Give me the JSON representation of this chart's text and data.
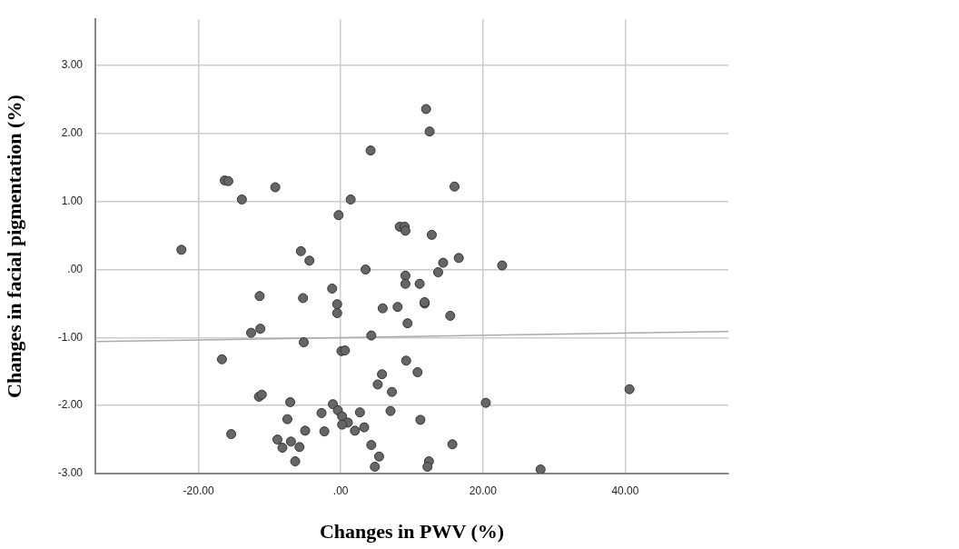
{
  "chart_data": {
    "type": "scatter",
    "xlabel": "Changes in PWV (%)",
    "ylabel": "Changes in facial pigmentation (%)",
    "xlim": [
      -34.5,
      54.5
    ],
    "ylim": [
      -3,
      3.68
    ],
    "xticks": [
      {
        "value": -20,
        "label": "-20.00"
      },
      {
        "value": 0,
        "label": ".00"
      },
      {
        "value": 20,
        "label": "20.00"
      },
      {
        "value": 40,
        "label": "40.00"
      }
    ],
    "yticks": [
      {
        "value": -3,
        "label": "-3.00"
      },
      {
        "value": -2,
        "label": "-2.00"
      },
      {
        "value": -1,
        "label": "-1.00"
      },
      {
        "value": 0,
        "label": ".00"
      },
      {
        "value": 1,
        "label": "1.00"
      },
      {
        "value": 2,
        "label": "2.00"
      },
      {
        "value": 3,
        "label": "3.00"
      }
    ],
    "grid": true,
    "legend": false,
    "marker": "circle",
    "series": [
      {
        "color": "#666666",
        "x": [
          12.0,
          12.5,
          4.2,
          -16.3,
          -15.8,
          -9.2,
          16.0,
          -13.9,
          1.4,
          -0.3,
          8.3,
          9.0,
          9.1,
          12.8,
          -22.4,
          -5.6,
          -4.4,
          14.4,
          16.6,
          22.7,
          3.5,
          9.1,
          9.1,
          13.7,
          11.1,
          -1.2,
          -11.4,
          -5.3,
          -0.5,
          -0.5,
          5.9,
          8.0,
          11.8,
          11.8,
          9.4,
          15.4,
          -12.6,
          -11.3,
          4.3,
          -5.2,
          0.1,
          0.6,
          -16.7,
          9.2,
          5.8,
          10.8,
          5.2,
          7.2,
          -11.5,
          -11.1,
          40.6,
          20.4,
          -7.1,
          -1.1,
          -0.4,
          -2.7,
          2.7,
          7.0,
          0.2,
          1.0,
          0.2,
          -7.5,
          -5.0,
          -2.3,
          2.0,
          3.3,
          11.2,
          -15.4,
          -8.9,
          -7.0,
          -8.2,
          -5.8,
          -6.4,
          4.3,
          15.7,
          5.4,
          4.8,
          12.4,
          12.2,
          28.1
        ],
        "values": [
          2.36,
          2.03,
          1.75,
          1.31,
          1.3,
          1.21,
          1.22,
          1.03,
          1.03,
          0.8,
          0.63,
          0.63,
          0.57,
          0.51,
          0.29,
          0.27,
          0.13,
          0.1,
          0.17,
          0.06,
          0.0,
          -0.09,
          -0.21,
          -0.04,
          -0.21,
          -0.28,
          -0.39,
          -0.42,
          -0.51,
          -0.64,
          -0.57,
          -0.55,
          -0.5,
          -0.48,
          -0.79,
          -0.68,
          -0.93,
          -0.87,
          -0.97,
          -1.07,
          -1.2,
          -1.19,
          -1.32,
          -1.34,
          -1.54,
          -1.51,
          -1.69,
          -1.8,
          -1.87,
          -1.84,
          -1.76,
          -1.96,
          -1.95,
          -1.98,
          -2.07,
          -2.11,
          -2.1,
          -2.08,
          -2.16,
          -2.25,
          -2.28,
          -2.2,
          -2.37,
          -2.38,
          -2.37,
          -2.32,
          -2.21,
          -2.42,
          -2.5,
          -2.53,
          -2.62,
          -2.61,
          -2.82,
          -2.58,
          -2.57,
          -2.75,
          -2.9,
          -2.82,
          -2.9,
          -2.94
        ]
      },
      {
        "type": "line",
        "color": "#aaaaaa",
        "marker": "none",
        "x": [
          -34.5,
          54.5
        ],
        "values": [
          -1.06,
          -0.91
        ]
      }
    ]
  }
}
